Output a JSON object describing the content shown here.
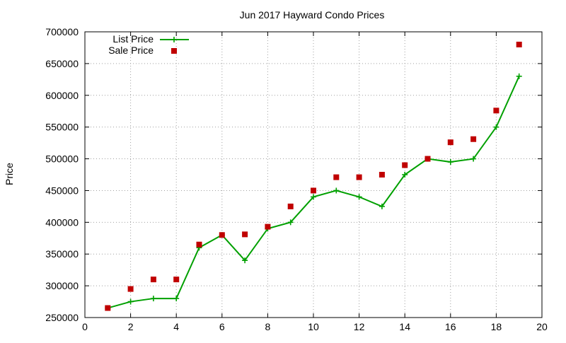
{
  "chart_data": {
    "type": "line",
    "title": "Jun 2017 Hayward Condo Prices",
    "xlabel": "",
    "ylabel": "Price",
    "xlim": [
      0,
      20
    ],
    "ylim": [
      250000,
      700000
    ],
    "x_ticks": [
      0,
      2,
      4,
      6,
      8,
      10,
      12,
      14,
      16,
      18,
      20
    ],
    "y_ticks": [
      250000,
      300000,
      350000,
      400000,
      450000,
      500000,
      550000,
      600000,
      650000,
      700000
    ],
    "grid": true,
    "legend_position": "top-left",
    "series": [
      {
        "name": "List Price",
        "style": "line-with-plus-markers",
        "color": "#00a000",
        "x": [
          1,
          2,
          3,
          4,
          5,
          6,
          7,
          8,
          9,
          10,
          11,
          12,
          13,
          14,
          15,
          16,
          17,
          18,
          19
        ],
        "y": [
          265000,
          275000,
          280000,
          280000,
          360000,
          380000,
          340000,
          390000,
          400000,
          440000,
          450000,
          440000,
          425000,
          475000,
          500000,
          495000,
          500000,
          550000,
          630000
        ]
      },
      {
        "name": "Sale Price",
        "style": "square-markers",
        "color": "#c00000",
        "x": [
          1,
          2,
          3,
          4,
          5,
          6,
          7,
          8,
          9,
          10,
          11,
          12,
          13,
          14,
          15,
          16,
          17,
          18,
          19
        ],
        "y": [
          265000,
          295000,
          310000,
          310000,
          365000,
          380000,
          381000,
          393000,
          425000,
          450000,
          471000,
          471000,
          475000,
          490000,
          500000,
          526000,
          531000,
          576000,
          680000
        ]
      }
    ]
  }
}
